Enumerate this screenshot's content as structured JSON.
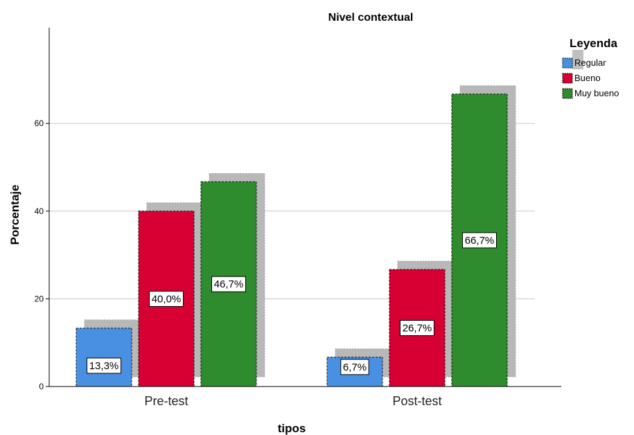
{
  "chart_data": {
    "type": "bar",
    "title": "Nivel contextual",
    "xlabel": "tipos",
    "ylabel": "Porcentaje",
    "categories": [
      "Pre-test",
      "Post-test"
    ],
    "series": [
      {
        "name": "Regular",
        "color": "#4a90e2",
        "values": [
          13.3,
          6.7
        ],
        "labels": [
          "13,3%",
          "6,7%"
        ]
      },
      {
        "name": "Bueno",
        "color": "#d60032",
        "values": [
          40.0,
          26.7
        ],
        "labels": [
          "40,0%",
          "26,7%"
        ]
      },
      {
        "name": "Muy bueno",
        "color": "#2e8b2e",
        "values": [
          46.7,
          66.7
        ],
        "labels": [
          "46,7%",
          "66,7%"
        ]
      }
    ],
    "ylim": [
      0,
      80
    ],
    "yticks": [
      0,
      20,
      40,
      60
    ],
    "grid": true,
    "legend": {
      "title": "Leyenda",
      "placement": "top-right"
    }
  }
}
